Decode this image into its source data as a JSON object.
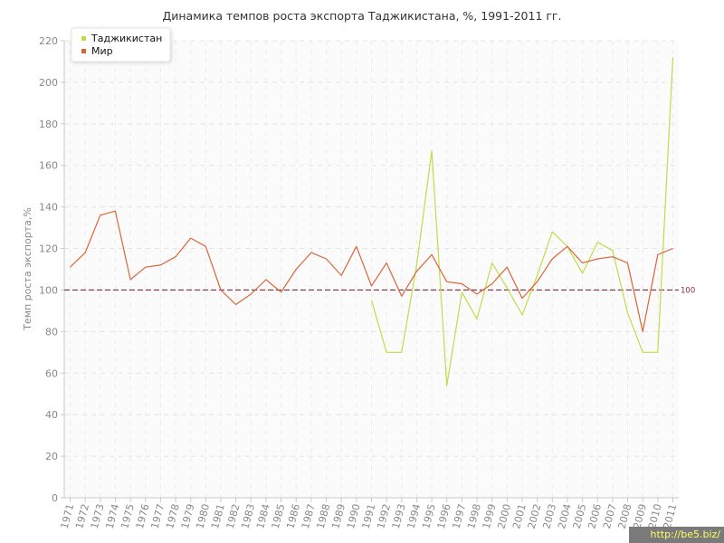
{
  "chart_data": {
    "type": "line",
    "title": "Динамика темпов роста экспорта Таджикистана, %, 1991-2011 гг.",
    "xlabel": "",
    "ylabel": "Темп роста экспорта,%",
    "ylim": [
      0,
      220
    ],
    "yticks": [
      0,
      20,
      40,
      60,
      80,
      100,
      120,
      140,
      160,
      180,
      200,
      220
    ],
    "categories": [
      "1971",
      "1972",
      "1973",
      "1974",
      "1975",
      "1976",
      "1977",
      "1978",
      "1979",
      "1980",
      "1981",
      "1982",
      "1983",
      "1984",
      "1985",
      "1986",
      "1987",
      "1988",
      "1989",
      "1990",
      "1991",
      "1992",
      "1993",
      "1994",
      "1995",
      "1996",
      "1997",
      "1998",
      "1999",
      "2000",
      "2001",
      "2002",
      "2003",
      "2004",
      "2005",
      "2006",
      "2007",
      "2008",
      "2009",
      "2010",
      "2011"
    ],
    "grid": true,
    "legend_position": "top-left",
    "reference_line": {
      "value": 100,
      "label": "100",
      "color": "#8b2a3e"
    },
    "series": [
      {
        "name": "Таджикистан",
        "color": "#bedd4a",
        "values": [
          null,
          null,
          null,
          null,
          null,
          null,
          null,
          null,
          null,
          null,
          null,
          null,
          null,
          null,
          null,
          null,
          null,
          null,
          null,
          null,
          95,
          70,
          70,
          112,
          167,
          54,
          99,
          86,
          113,
          101,
          88,
          107,
          128,
          121,
          108,
          123,
          119,
          89,
          70,
          70,
          212
        ]
      },
      {
        "name": "Мир",
        "color": "#d9663a",
        "values": [
          111,
          118,
          136,
          138,
          105,
          111,
          112,
          116,
          125,
          121,
          100,
          93,
          98,
          105,
          99,
          110,
          118,
          115,
          107,
          121,
          102,
          113,
          97,
          109,
          117,
          104,
          103,
          98,
          103,
          111,
          96,
          104,
          115,
          121,
          113,
          115,
          116,
          113,
          80,
          117,
          120
        ]
      }
    ]
  },
  "watermark": "http://be5.biz/"
}
